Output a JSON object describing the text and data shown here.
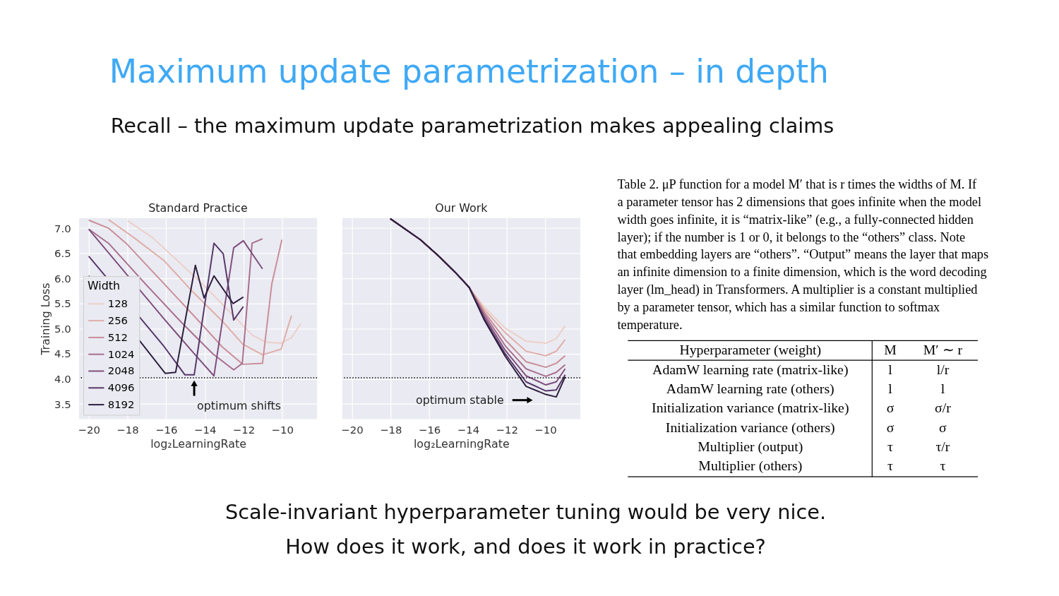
{
  "chart_data": [
    {
      "type": "other",
      "title": "Maximum update parametrization – in depth",
      "subtitle": "Recall – the maximum update parametrization makes appealing claims",
      "annotations": [
        "Scale-invariant hyperparameter tuning would be very nice.",
        "How does it work, and does it work in practice?"
      ]
    },
    {
      "type": "line",
      "title": "Standard Practice",
      "xlabel": "log₂LearningRate",
      "ylabel": "Training Loss",
      "legend_title": "Width",
      "legend": "bottom left",
      "grid": true,
      "xlim": [
        -20.5,
        -8.2
      ],
      "ylim": [
        3.2,
        7.2
      ],
      "xticks": [
        {
          "value": -20,
          "label": "−20"
        },
        {
          "value": -18,
          "label": "−18"
        },
        {
          "value": -16,
          "label": "−16"
        },
        {
          "value": -14,
          "label": "−14"
        },
        {
          "value": -12,
          "label": "−12"
        },
        {
          "value": -10,
          "label": "−10"
        }
      ],
      "yticks": [
        {
          "value": 3.5,
          "label": "3.5"
        },
        {
          "value": 4,
          "label": "4.0"
        },
        {
          "value": 4.5,
          "label": "4.5"
        },
        {
          "value": 5,
          "label": "5.0"
        },
        {
          "value": 5.5,
          "label": "5.5"
        },
        {
          "value": 6,
          "label": "6.0"
        },
        {
          "value": 6.5,
          "label": "6.5"
        },
        {
          "value": 7,
          "label": "7.0"
        }
      ],
      "series": [
        {
          "name": "128",
          "color": "#ecd0c8",
          "x": [
            -18.0,
            -16.7,
            -15.15,
            -14.0,
            -12.6,
            -11.55,
            -10.84,
            -10.06,
            -9.52,
            -9.04
          ],
          "values": [
            7.15,
            6.81,
            6.26,
            5.84,
            5.29,
            4.87,
            4.73,
            4.71,
            4.82,
            5.1
          ]
        },
        {
          "name": "256",
          "color": "#dfaea8",
          "x": [
            -18.98,
            -17.66,
            -16.1,
            -14.67,
            -13.1,
            -12.04,
            -11.02,
            -10.06,
            -9.52
          ],
          "values": [
            7.17,
            6.81,
            6.35,
            5.75,
            5.15,
            4.69,
            4.48,
            4.59,
            5.26
          ]
        },
        {
          "name": "512",
          "color": "#c98e98",
          "x": [
            -20.0,
            -18.98,
            -18.02,
            -16.1,
            -14.19,
            -13.11,
            -12.04,
            -11.02,
            -10.54,
            -10.02
          ],
          "values": [
            7.16,
            7.0,
            6.68,
            5.89,
            5.1,
            4.64,
            4.29,
            4.31,
            5.89,
            6.77
          ]
        },
        {
          "name": "1024",
          "color": "#a86f8c",
          "x": [
            -20.0,
            -18.98,
            -17.07,
            -15.15,
            -13.59,
            -12.51,
            -12.06,
            -11.56,
            -11.02
          ],
          "values": [
            6.98,
            6.7,
            5.89,
            5.1,
            4.5,
            4.18,
            4.31,
            6.7,
            6.79
          ]
        },
        {
          "name": "2048",
          "color": "#7f4f7d",
          "x": [
            -20.0,
            -16.1,
            -14.55,
            -13.53,
            -12.51,
            -12.01,
            -11.02
          ],
          "values": [
            6.98,
            5.19,
            4.5,
            4.06,
            6.61,
            6.75,
            6.19
          ]
        },
        {
          "name": "4096",
          "color": "#563769",
          "x": [
            -20.0,
            -16.1,
            -15.03,
            -14.55,
            -13.53,
            -13.05,
            -12.51,
            -12.01
          ],
          "values": [
            6.44,
            4.64,
            4.08,
            4.08,
            6.7,
            6.49,
            5.17,
            5.44
          ]
        },
        {
          "name": "8192",
          "color": "#2e1f3e",
          "x": [
            -20.0,
            -16.05,
            -15.51,
            -14.49,
            -14.04,
            -13.53,
            -12.54,
            -12.01
          ],
          "values": [
            6.05,
            4.11,
            4.13,
            6.26,
            5.61,
            6.05,
            5.5,
            5.63
          ]
        }
      ],
      "ref_lines": [
        {
          "axis": "y",
          "value": 4.02,
          "color": "#000000",
          "line_style": "dotted"
        }
      ],
      "annotations": [
        {
          "text": "optimum shifts",
          "x": -14.55,
          "y": 4.08
        }
      ]
    },
    {
      "type": "line",
      "title": "Our Work",
      "xlabel": "log₂LearningRate",
      "grid": true,
      "tick_labels": "x",
      "xlim": [
        -20.5,
        -8.2
      ],
      "ylim": [
        3.2,
        7.2
      ],
      "xticks": [
        {
          "value": -20,
          "label": "−20"
        },
        {
          "value": -18,
          "label": "−18"
        },
        {
          "value": -16,
          "label": "−16"
        },
        {
          "value": -14,
          "label": "−14"
        },
        {
          "value": -12,
          "label": "−12"
        },
        {
          "value": -10,
          "label": "−10"
        }
      ],
      "yticks": [
        3.5,
        4,
        4.5,
        5,
        5.5,
        6,
        6.5,
        7
      ],
      "series": [
        {
          "color": "#ecd0c8",
          "x": [
            -18.02,
            -16.46,
            -15.5,
            -14.66,
            -13.94,
            -13.16,
            -12.08,
            -11.0,
            -9.98,
            -9.44,
            -8.98
          ],
          "values": [
            7.19,
            6.77,
            6.44,
            6.12,
            5.82,
            5.43,
            5.01,
            4.75,
            4.71,
            4.8,
            5.06
          ]
        },
        {
          "color": "#dfaea8",
          "x": [
            -18.02,
            -16.46,
            -15.5,
            -14.66,
            -13.94,
            -13.16,
            -12.08,
            -11.0,
            -9.98,
            -9.44,
            -8.98
          ],
          "values": [
            7.19,
            6.77,
            6.44,
            6.12,
            5.82,
            5.38,
            4.92,
            4.55,
            4.46,
            4.55,
            4.78
          ]
        },
        {
          "color": "#c98e98",
          "x": [
            -18.02,
            -16.46,
            -15.5,
            -14.66,
            -13.94,
            -13.16,
            -12.08,
            -11.0,
            -9.98,
            -9.44,
            -8.98
          ],
          "values": [
            7.19,
            6.77,
            6.44,
            6.12,
            5.82,
            5.33,
            4.78,
            4.34,
            4.23,
            4.31,
            4.46
          ]
        },
        {
          "color": "#a86f8c",
          "x": [
            -18.02,
            -16.46,
            -15.5,
            -14.66,
            -13.94,
            -13.16,
            -12.08,
            -11.0,
            -9.98,
            -9.44,
            -8.98
          ],
          "values": [
            7.19,
            6.77,
            6.44,
            6.12,
            5.82,
            5.29,
            4.66,
            4.2,
            4.05,
            4.13,
            4.28
          ]
        },
        {
          "color": "#7f4f7d",
          "x": [
            -18.02,
            -16.46,
            -15.5,
            -14.66,
            -13.94,
            -13.16,
            -12.08,
            -11.0,
            -9.98,
            -9.44,
            -8.98
          ],
          "values": [
            7.19,
            6.77,
            6.44,
            6.12,
            5.82,
            5.24,
            4.57,
            4.06,
            3.88,
            3.94,
            4.2
          ]
        },
        {
          "color": "#563769",
          "x": [
            -18.02,
            -16.46,
            -15.5,
            -14.66,
            -13.94,
            -13.16,
            -12.08,
            -11.0,
            -9.98,
            -9.44,
            -8.98
          ],
          "values": [
            7.19,
            6.77,
            6.44,
            6.12,
            5.82,
            5.19,
            4.5,
            3.94,
            3.76,
            3.78,
            4.08
          ]
        },
        {
          "color": "#2e1f3e",
          "x": [
            -18.02,
            -16.46,
            -15.5,
            -14.66,
            -13.94,
            -13.16,
            -12.08,
            -11.0,
            -9.98,
            -9.44,
            -8.98
          ],
          "values": [
            7.19,
            6.77,
            6.44,
            6.12,
            5.82,
            5.17,
            4.45,
            3.85,
            3.69,
            3.64,
            4.04
          ]
        }
      ],
      "ref_lines": [
        {
          "axis": "y",
          "value": 4.02,
          "color": "#000000",
          "line_style": "dotted"
        }
      ],
      "annotations": [
        "optimum stable"
      ]
    },
    {
      "type": "other",
      "title": "Table 2. μP function for a model M′ that is r times the widths of M. If a parameter tensor has 2 dimensions that goes infinite when the model width goes infinite, it is “matrix-like” (e.g., a fully-connected hidden layer); if the number is 1 or 0, it belongs to the “others” class. Note that embedding layers are “others”. “Output” means the layer that maps an infinite dimension to a finite dimension, which is the word decoding layer (lm_head) in Transformers. A multiplier is a constant multiplied by a parameter tensor, which has a similar function to softmax temperature.",
      "categories": [
        "Hyperparameter (weight)",
        "M",
        "M′ ∼ r"
      ],
      "y_categories": [
        "AdamW learning rate (matrix-like)",
        "AdamW learning rate (others)",
        "Initialization variance (matrix-like)",
        "Initialization variance (others)",
        "Multiplier (output)",
        "Multiplier (others)"
      ],
      "cell_labels": [
        [
          "l",
          "l/r"
        ],
        [
          "l",
          "l"
        ],
        [
          "σ",
          "σ/r"
        ],
        [
          "σ",
          "σ"
        ],
        [
          "τ",
          "τ/r"
        ],
        [
          "τ",
          "τ"
        ]
      ]
    }
  ]
}
